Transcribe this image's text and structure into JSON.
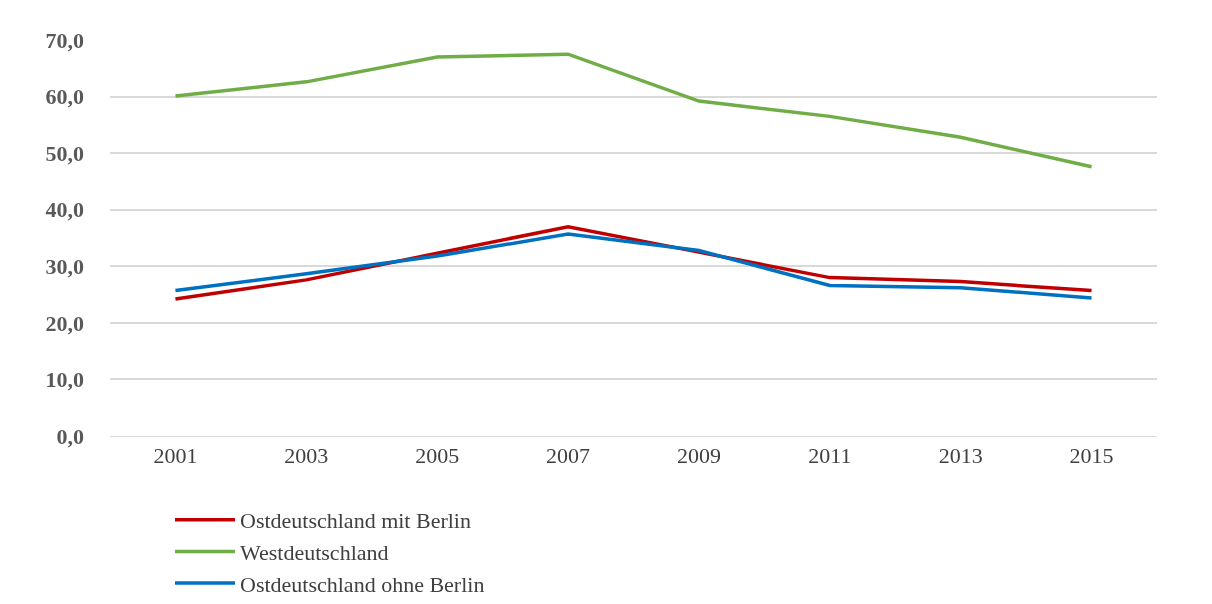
{
  "chart_data": {
    "type": "line",
    "categories": [
      "2001",
      "2003",
      "2005",
      "2007",
      "2009",
      "2011",
      "2013",
      "2015"
    ],
    "series": [
      {
        "name": "Ostdeutschland mit Berlin",
        "color": "#c00000",
        "values": [
          24.2,
          27.6,
          32.3,
          37.0,
          32.5,
          28.0,
          27.3,
          25.7
        ]
      },
      {
        "name": "Westdeutschland",
        "color": "#70ad47",
        "values": [
          60.1,
          62.6,
          67.0,
          67.5,
          59.2,
          56.5,
          52.8,
          47.6
        ]
      },
      {
        "name": "Ostdeutschland ohne Berlin",
        "color": "#0070c0",
        "values": [
          25.7,
          28.7,
          31.8,
          35.7,
          32.8,
          26.6,
          26.2,
          24.4
        ]
      }
    ],
    "ylim": [
      0,
      70
    ],
    "yticks": [
      {
        "value": 0,
        "label": "0,0"
      },
      {
        "value": 10,
        "label": "10,0"
      },
      {
        "value": 20,
        "label": "20,0"
      },
      {
        "value": 30,
        "label": "30,0"
      },
      {
        "value": 40,
        "label": "40,0"
      },
      {
        "value": 50,
        "label": "50,0"
      },
      {
        "value": 60,
        "label": "60,0"
      },
      {
        "value": 70,
        "label": "70,0"
      }
    ],
    "grid": "y",
    "legend": "bottom",
    "marker": "none",
    "line_style": "solid"
  }
}
